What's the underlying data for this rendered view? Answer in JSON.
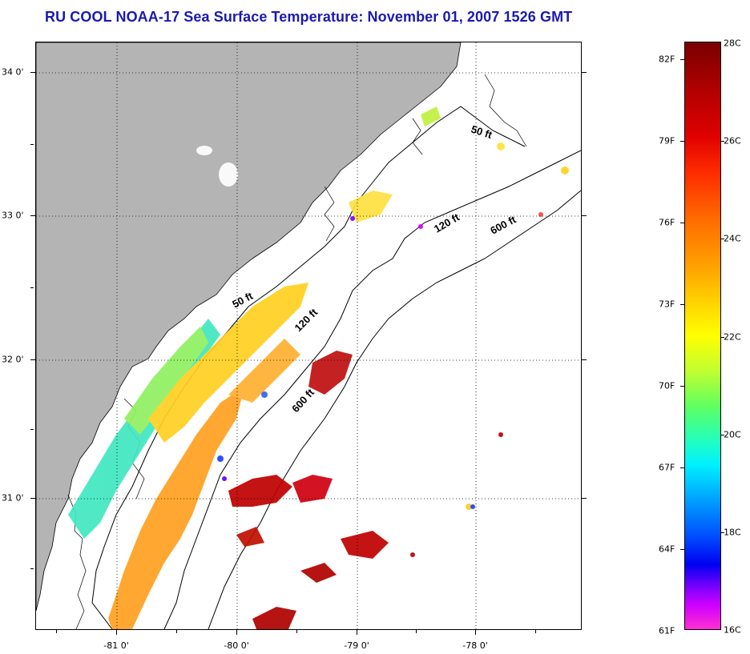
{
  "title": "RU COOL  NOAA-17  Sea Surface Temperature:  November 01, 2007 1526 GMT",
  "map": {
    "lat_labels": [
      "34 0'",
      "33 0'",
      "32 0'",
      "31 0'"
    ],
    "lon_labels": [
      "-81 0'",
      "-80 0'",
      "-79 0'",
      "-78 0'"
    ],
    "depth_labels": {
      "d50_north": "50 ft",
      "d120_north": "120 ft",
      "d600_north": "600 ft",
      "d50_south": "50 ft",
      "d120_south": "120 ft",
      "d600_south": "600 ft"
    },
    "colors": {
      "land": "#b4b4b4",
      "ocean": "#ffffff",
      "contour": "#000000",
      "grid": "#000000"
    }
  },
  "colorbar": {
    "fahrenheit_labels": [
      "82F",
      "79F",
      "76F",
      "73F",
      "70F",
      "67F",
      "64F",
      "61F"
    ],
    "celsius_labels": [
      "28C",
      "26C",
      "24C",
      "22C",
      "20C",
      "18C",
      "16C"
    ]
  }
}
